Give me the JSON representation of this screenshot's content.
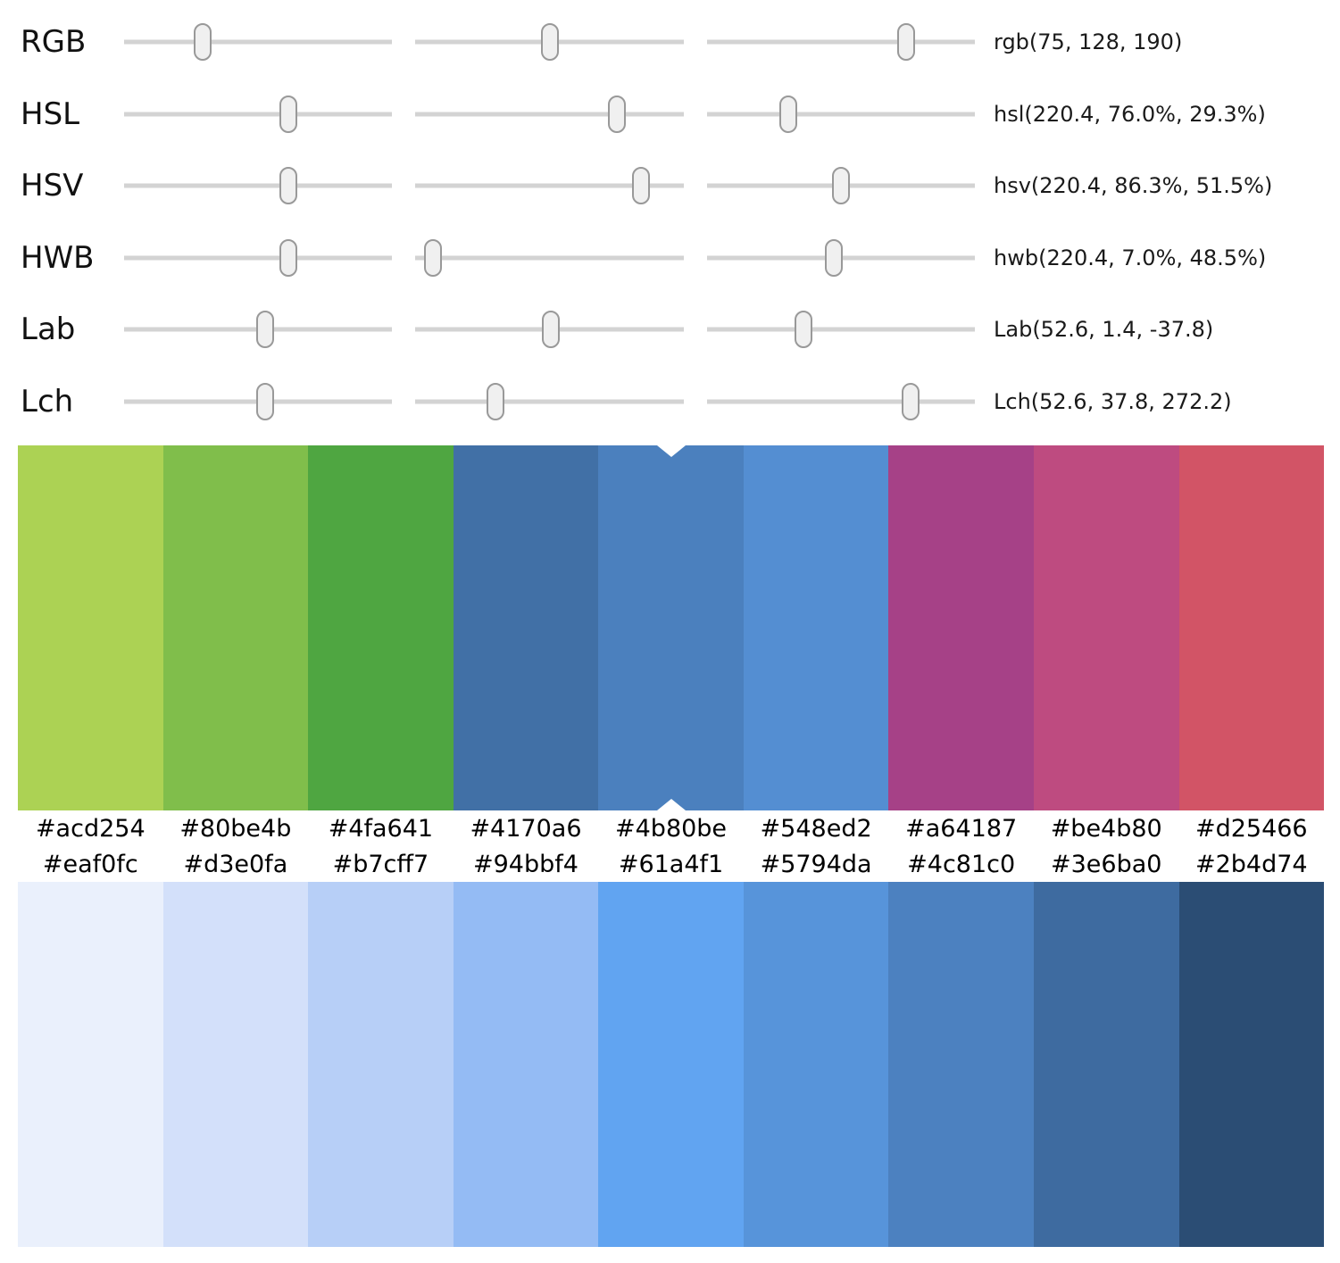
{
  "sliders": {
    "rows": [
      {
        "label": "RGB",
        "value": "rgb(75, 128, 190)",
        "positions": [
          29.4,
          50.2,
          74.5
        ]
      },
      {
        "label": "HSL",
        "value": "hsl(220.4, 76.0%, 29.3%)",
        "positions": [
          61.2,
          75.0,
          30.5
        ]
      },
      {
        "label": "HSV",
        "value": "hsv(220.4, 86.3%, 51.5%)",
        "positions": [
          61.2,
          84.0,
          50.0
        ]
      },
      {
        "label": "HWB",
        "value": "hwb(220.4, 7.0%, 48.5%)",
        "positions": [
          61.2,
          6.5,
          47.5
        ]
      },
      {
        "label": "Lab",
        "value": "Lab(52.6, 1.4, -37.8)",
        "positions": [
          52.6,
          50.5,
          36.0
        ]
      },
      {
        "label": "Lch",
        "value": "Lch(52.6, 37.8, 272.2)",
        "positions": [
          52.6,
          30.0,
          76.0
        ]
      }
    ]
  },
  "palette_top": {
    "selected_index": 4,
    "swatches": [
      "#acd254",
      "#80be4b",
      "#4fa641",
      "#4170a6",
      "#4b80be",
      "#548ed2",
      "#a64187",
      "#be4b80",
      "#d25466"
    ]
  },
  "palette_bottom": {
    "swatches": [
      "#eaf0fc",
      "#d3e0fa",
      "#b7cff7",
      "#94bbf4",
      "#61a4f1",
      "#5794da",
      "#4c81c0",
      "#3e6ba0",
      "#2b4d74"
    ]
  },
  "colors": {
    "track": "#d3d3d3",
    "thumb_fill": "#f0f0f0",
    "thumb_border": "#999999",
    "selected_color": "#4b80be"
  }
}
